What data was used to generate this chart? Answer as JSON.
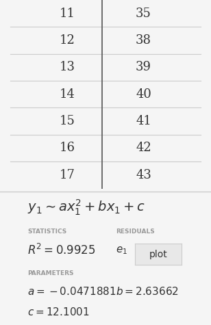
{
  "table_rows": [
    [
      11,
      35
    ],
    [
      12,
      38
    ],
    [
      13,
      39
    ],
    [
      14,
      40
    ],
    [
      15,
      41
    ],
    [
      16,
      42
    ],
    [
      17,
      43
    ]
  ],
  "statistics_label": "STATISTICS",
  "residuals_label": "RESIDUALS",
  "plot_button": "plot",
  "parameters_label": "PARAMETERS",
  "bg_color": "#f5f5f5",
  "table_bg": "#ffffff",
  "divider_color": "#cccccc",
  "text_color": "#333333",
  "label_color": "#999999",
  "button_bg": "#e8e8e8",
  "button_border": "#cccccc"
}
